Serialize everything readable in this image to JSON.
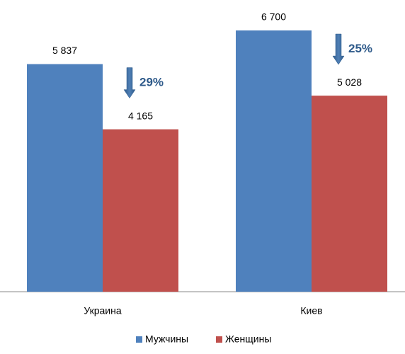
{
  "chart_data": {
    "type": "bar",
    "categories": [
      "Украина",
      "Киев"
    ],
    "series": [
      {
        "name": "Мужчины",
        "color": "#4f81bd",
        "values": [
          5837,
          6700
        ],
        "value_labels": [
          "5 837",
          "6 700"
        ]
      },
      {
        "name": "Женщины",
        "color": "#c0504d",
        "values": [
          4165,
          5028
        ],
        "value_labels": [
          "4 165",
          "5 028"
        ]
      }
    ],
    "annotations": [
      "29%",
      "25%"
    ]
  }
}
